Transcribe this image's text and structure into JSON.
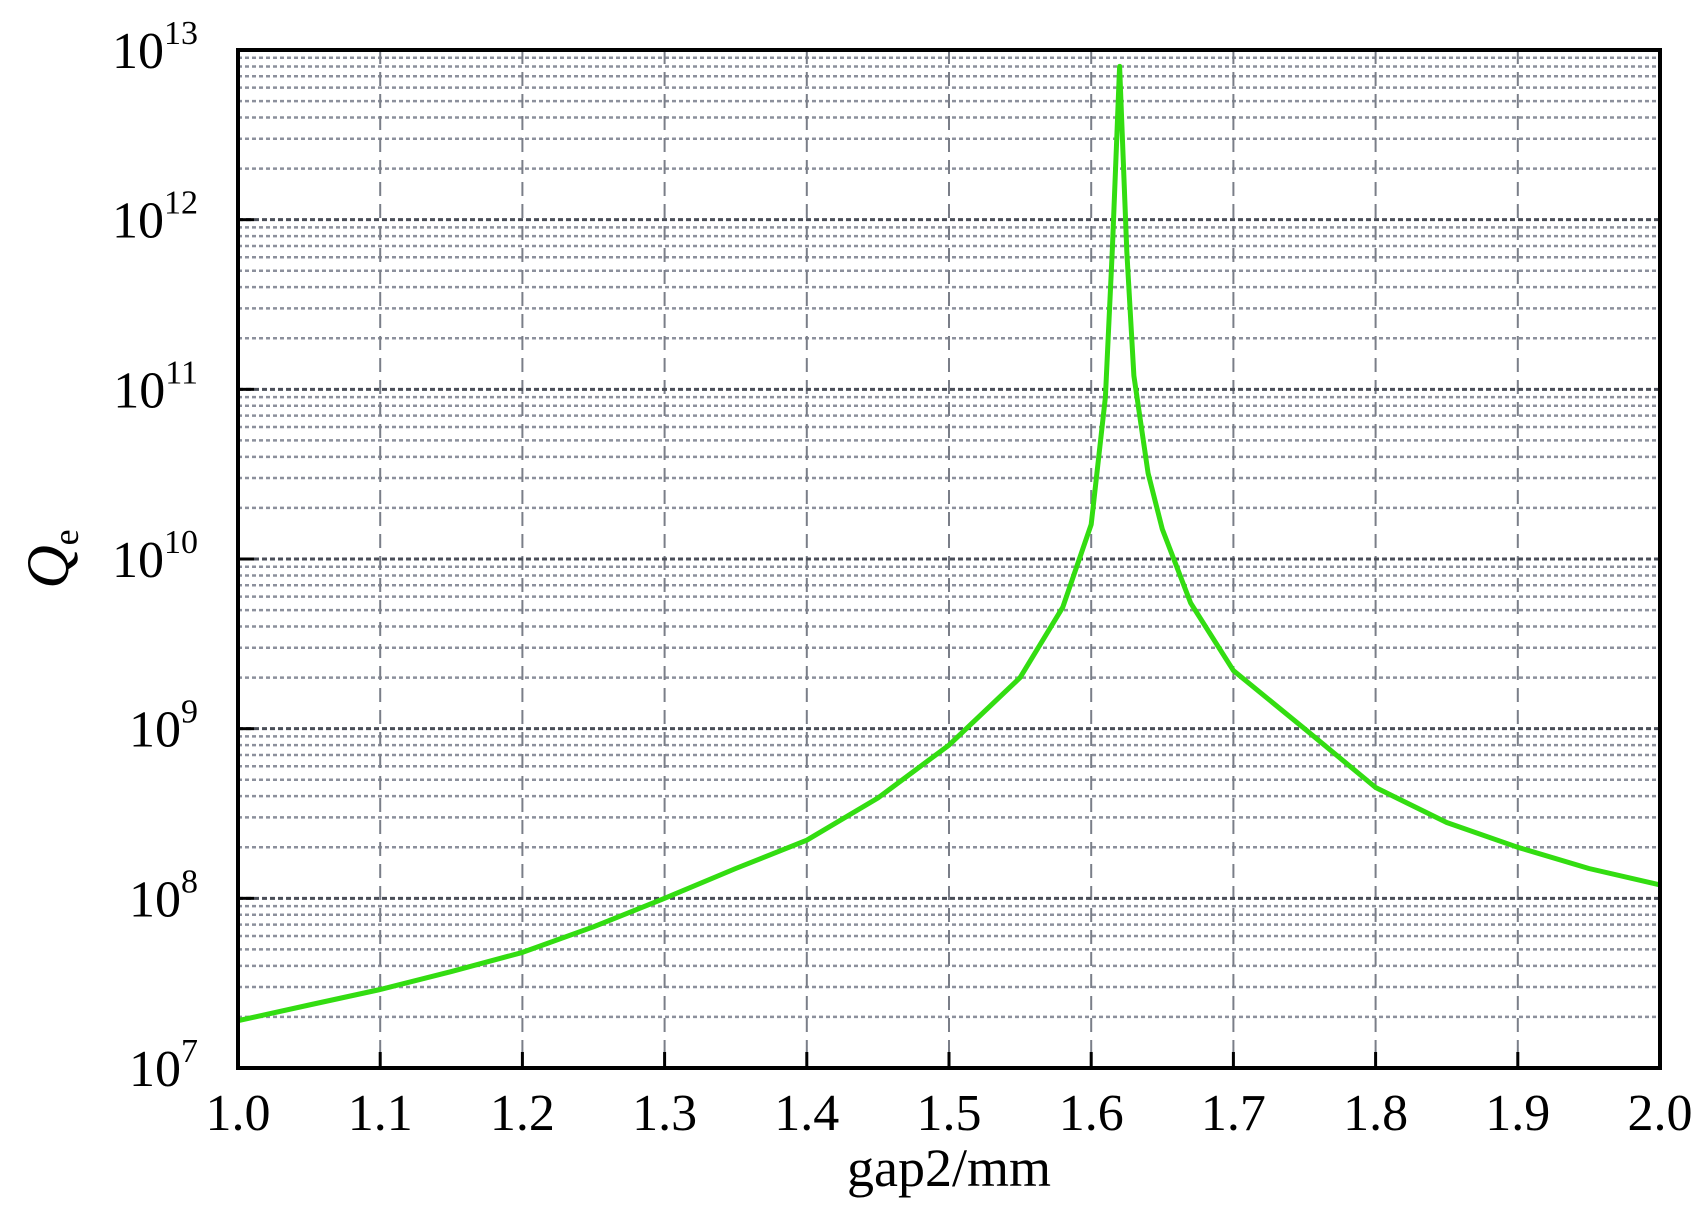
{
  "chart_data": {
    "type": "line",
    "title": "",
    "xlabel": "gap2/mm",
    "ylabel": "Q",
    "ylabel_sub": "e",
    "yscale": "log",
    "xlim": [
      1.0,
      2.0
    ],
    "ylim": [
      10000000,
      10000000000000
    ],
    "grid": true,
    "x_ticks": [
      {
        "value": 1.0,
        "label": "1.0"
      },
      {
        "value": 1.1,
        "label": "1.1"
      },
      {
        "value": 1.2,
        "label": "1.2"
      },
      {
        "value": 1.3,
        "label": "1.3"
      },
      {
        "value": 1.4,
        "label": "1.4"
      },
      {
        "value": 1.5,
        "label": "1.5"
      },
      {
        "value": 1.6,
        "label": "1.6"
      },
      {
        "value": 1.7,
        "label": "1.7"
      },
      {
        "value": 1.8,
        "label": "1.8"
      },
      {
        "value": 1.9,
        "label": "1.9"
      },
      {
        "value": 2.0,
        "label": "2.0"
      }
    ],
    "y_ticks": [
      {
        "value": 10000000,
        "base": "10",
        "exp": "7"
      },
      {
        "value": 100000000,
        "base": "10",
        "exp": "8"
      },
      {
        "value": 1000000000,
        "base": "10",
        "exp": "9"
      },
      {
        "value": 10000000000,
        "base": "10",
        "exp": "10"
      },
      {
        "value": 100000000000,
        "base": "10",
        "exp": "11"
      },
      {
        "value": 1000000000000,
        "base": "10",
        "exp": "12"
      },
      {
        "value": 10000000000000,
        "base": "10",
        "exp": "13"
      }
    ],
    "series": [
      {
        "name": "",
        "color": "#33dd11",
        "x": [
          1.0,
          1.05,
          1.1,
          1.15,
          1.2,
          1.25,
          1.3,
          1.35,
          1.4,
          1.45,
          1.5,
          1.55,
          1.58,
          1.6,
          1.61,
          1.615,
          1.62,
          1.625,
          1.63,
          1.64,
          1.65,
          1.67,
          1.7,
          1.75,
          1.8,
          1.85,
          1.9,
          1.95,
          2.0
        ],
        "y": [
          19000000,
          23500000,
          29000000,
          37000000,
          48000000,
          68000000,
          100000000,
          150000000,
          220000000,
          390000000,
          800000000,
          2000000000,
          5200000000,
          16000000000,
          90000000000,
          700000000000,
          8000000000000,
          650000000000,
          120000000000,
          32000000000,
          15000000000,
          5500000000,
          2200000000,
          1000000000,
          450000000,
          280000000,
          200000000,
          150000000,
          120000000
        ]
      }
    ]
  }
}
